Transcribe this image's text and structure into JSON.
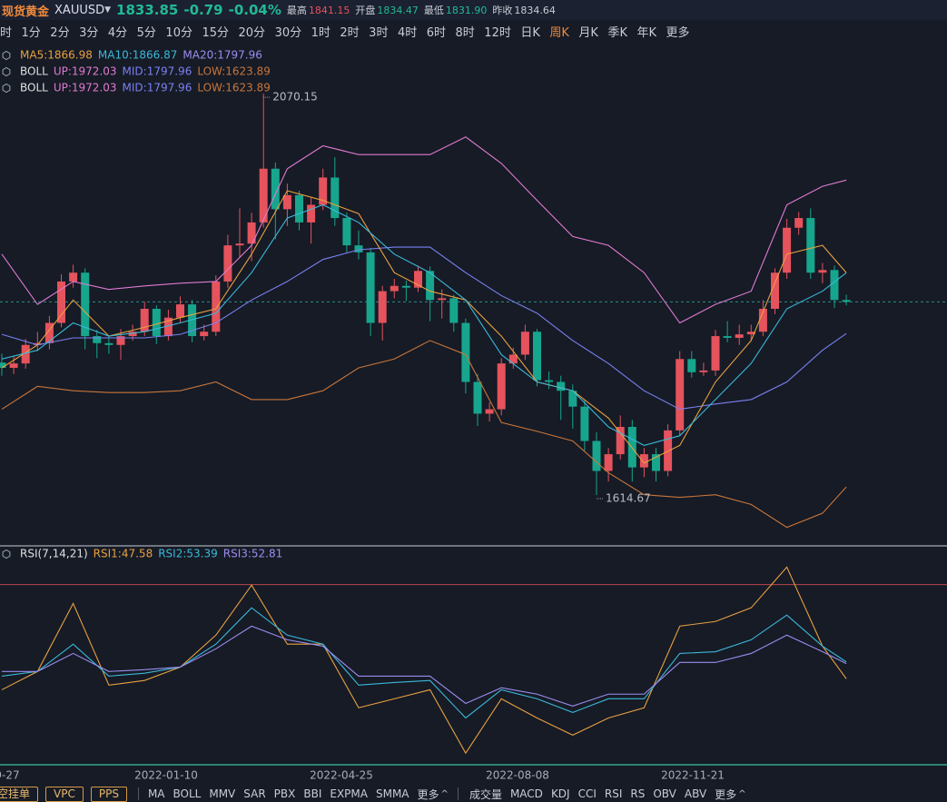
{
  "header": {
    "name": "现货黄金",
    "symbol": "XAUUSD",
    "price": "1833.85",
    "change": "-0.79",
    "change_pct": "-0.04%",
    "high_label": "最高",
    "high": "1841.15",
    "open_label": "开盘",
    "open": "1834.47",
    "low_label": "最低",
    "low": "1831.90",
    "prev_label": "昨收",
    "prev": "1834.64"
  },
  "periods": {
    "items": [
      "时",
      "1分",
      "2分",
      "3分",
      "4分",
      "5分",
      "10分",
      "15分",
      "20分",
      "30分",
      "1时",
      "2时",
      "3时",
      "4时",
      "6时",
      "8时",
      "12时",
      "日K",
      "周K",
      "月K",
      "季K",
      "年K",
      "更多"
    ],
    "active": "周K"
  },
  "legend": [
    [
      "MA5:1866.98",
      "MA10:1866.87",
      "MA20:1797.96"
    ],
    [
      "BOLL",
      "UP:1972.03",
      "MID:1797.96",
      "LOW:1623.89"
    ],
    [
      "BOLL",
      "UP:1972.03",
      "MID:1797.96",
      "LOW:1623.89"
    ]
  ],
  "chart_data": {
    "type": "candlestick",
    "up_color": "#e5535d",
    "down_color": "#17a68d",
    "ylim": [
      1558,
      2128
    ],
    "candles": [
      [
        1765,
        1775,
        1750,
        1759
      ],
      [
        1759,
        1772,
        1752,
        1764
      ],
      [
        1764,
        1792,
        1758,
        1785
      ],
      [
        1785,
        1800,
        1778,
        1787
      ],
      [
        1787,
        1818,
        1780,
        1810
      ],
      [
        1810,
        1865,
        1805,
        1857
      ],
      [
        1857,
        1876,
        1850,
        1867
      ],
      [
        1867,
        1872,
        1780,
        1795
      ],
      [
        1795,
        1802,
        1770,
        1787
      ],
      [
        1787,
        1795,
        1775,
        1785
      ],
      [
        1785,
        1803,
        1768,
        1795
      ],
      [
        1795,
        1808,
        1790,
        1800
      ],
      [
        1800,
        1834,
        1795,
        1826
      ],
      [
        1826,
        1830,
        1786,
        1795
      ],
      [
        1795,
        1825,
        1790,
        1816
      ],
      [
        1816,
        1840,
        1810,
        1831
      ],
      [
        1831,
        1836,
        1788,
        1795
      ],
      [
        1795,
        1808,
        1790,
        1800
      ],
      [
        1800,
        1864,
        1795,
        1857
      ],
      [
        1857,
        1910,
        1850,
        1898
      ],
      [
        1898,
        1940,
        1885,
        1900
      ],
      [
        1900,
        1935,
        1880,
        1924
      ],
      [
        1924,
        2070.15,
        1918,
        1985
      ],
      [
        1985,
        1992,
        1905,
        1939
      ],
      [
        1939,
        1968,
        1920,
        1955
      ],
      [
        1955,
        1960,
        1915,
        1924
      ],
      [
        1924,
        1952,
        1900,
        1944
      ],
      [
        1944,
        1985,
        1938,
        1975
      ],
      [
        1975,
        1998,
        1920,
        1929
      ],
      [
        1929,
        1935,
        1890,
        1898
      ],
      [
        1898,
        1915,
        1882,
        1890
      ],
      [
        1890,
        1895,
        1795,
        1810
      ],
      [
        1810,
        1852,
        1790,
        1846
      ],
      [
        1846,
        1860,
        1838,
        1852
      ],
      [
        1852,
        1858,
        1835,
        1850
      ],
      [
        1850,
        1875,
        1845,
        1869
      ],
      [
        1869,
        1874,
        1812,
        1836
      ],
      [
        1836,
        1848,
        1815,
        1838
      ],
      [
        1838,
        1842,
        1800,
        1810
      ],
      [
        1810,
        1815,
        1730,
        1743
      ],
      [
        1743,
        1752,
        1693,
        1707
      ],
      [
        1707,
        1720,
        1698,
        1712
      ],
      [
        1712,
        1770,
        1705,
        1764
      ],
      [
        1764,
        1782,
        1758,
        1774
      ],
      [
        1774,
        1808,
        1768,
        1800
      ],
      [
        1800,
        1803,
        1738,
        1745
      ],
      [
        1745,
        1755,
        1735,
        1743
      ],
      [
        1743,
        1750,
        1700,
        1733
      ],
      [
        1733,
        1740,
        1690,
        1715
      ],
      [
        1715,
        1722,
        1665,
        1676
      ],
      [
        1676,
        1686,
        1614.67,
        1642
      ],
      [
        1642,
        1668,
        1630,
        1661
      ],
      [
        1661,
        1705,
        1655,
        1692
      ],
      [
        1692,
        1700,
        1630,
        1646
      ],
      [
        1646,
        1668,
        1635,
        1661
      ],
      [
        1661,
        1668,
        1630,
        1642
      ],
      [
        1642,
        1695,
        1636,
        1688
      ],
      [
        1688,
        1778,
        1682,
        1769
      ],
      [
        1769,
        1778,
        1748,
        1754
      ],
      [
        1754,
        1765,
        1750,
        1756
      ],
      [
        1756,
        1802,
        1750,
        1795
      ],
      [
        1795,
        1812,
        1788,
        1793
      ],
      [
        1793,
        1808,
        1785,
        1797
      ],
      [
        1797,
        1808,
        1790,
        1800
      ],
      [
        1800,
        1836,
        1795,
        1826
      ],
      [
        1826,
        1872,
        1820,
        1867
      ],
      [
        1867,
        1928,
        1860,
        1918
      ],
      [
        1918,
        1936,
        1910,
        1929
      ],
      [
        1929,
        1940,
        1860,
        1867
      ],
      [
        1867,
        1878,
        1855,
        1870
      ],
      [
        1870,
        1875,
        1827,
        1836
      ],
      [
        1836,
        1842,
        1830,
        1833.85
      ]
    ],
    "x": [
      0,
      3,
      6,
      9,
      12,
      15,
      18,
      21,
      24,
      27,
      30,
      33,
      36,
      39,
      42,
      45,
      48,
      51,
      54,
      57,
      60,
      63,
      66,
      69,
      71
    ],
    "series": [
      {
        "name": "BOLL UP",
        "color": "#e07ad0",
        "values": [
          1888,
          1831,
          1857,
          1848,
          1852,
          1855,
          1857,
          1898,
          1985,
          2011,
          2001,
          2001,
          2001,
          2021,
          1991,
          1949,
          1908,
          1898,
          1867,
          1810,
          1831,
          1846,
          1944,
          1965,
          1972.03
        ]
      },
      {
        "name": "BOLL MID",
        "color": "#7a80f0",
        "values": [
          1797,
          1785,
          1793,
          1793,
          1793,
          1797,
          1810,
          1836,
          1857,
          1882,
          1893,
          1896,
          1896,
          1867,
          1841,
          1821,
          1790,
          1764,
          1733,
          1712,
          1718,
          1723,
          1743,
          1779,
          1797.96
        ]
      },
      {
        "name": "BOLL LOW",
        "color": "#c8753a",
        "values": [
          1712,
          1738,
          1733,
          1731,
          1731,
          1733,
          1743,
          1723,
          1723,
          1733,
          1759,
          1769,
          1790,
          1774,
          1697,
          1687,
          1676,
          1640,
          1615,
          1612,
          1615,
          1604,
          1578,
          1594,
          1623.89
        ]
      },
      {
        "name": "MA5",
        "color": "#e8a040",
        "values": [
          1759,
          1785,
          1836,
          1795,
          1805,
          1816,
          1826,
          1888,
          1960,
          1949,
          1934,
          1867,
          1846,
          1836,
          1795,
          1743,
          1733,
          1702,
          1651,
          1671,
          1743,
          1790,
          1888,
          1898,
          1866.98
        ]
      },
      {
        "name": "MA10",
        "color": "#3bb8d8",
        "values": [
          1769,
          1779,
          1810,
          1795,
          1800,
          1810,
          1821,
          1867,
          1929,
          1944,
          1924,
          1888,
          1867,
          1836,
          1774,
          1743,
          1733,
          1692,
          1671,
          1682,
          1723,
          1764,
          1826,
          1846,
          1866.87
        ]
      }
    ]
  },
  "rsi": {
    "type": "line",
    "legend": [
      "RSI(7,14,21)",
      "RSI1:47.58",
      "RSI2:53.39",
      "RSI3:52.81"
    ],
    "ylim": [
      18,
      93
    ],
    "levels": [
      80
    ],
    "level_color": "#b8474a",
    "x": [
      0,
      3,
      6,
      9,
      12,
      15,
      18,
      21,
      24,
      27,
      30,
      33,
      36,
      39,
      42,
      45,
      48,
      51,
      54,
      57,
      60,
      63,
      66,
      69,
      71
    ],
    "series": [
      {
        "name": "RSI1",
        "color": "#e8a040",
        "values": [
          43.8,
          50.1,
          73.5,
          45.4,
          47.0,
          51.6,
          62.6,
          79.8,
          59.5,
          59.5,
          37.6,
          40.7,
          43.8,
          22.0,
          40.7,
          34.1,
          28.2,
          34.1,
          37.6,
          65.7,
          67.3,
          72.0,
          86.0,
          58.8,
          47.58
        ]
      },
      {
        "name": "RSI2",
        "color": "#3bb8d8",
        "values": [
          48.5,
          50.1,
          59.5,
          48.5,
          49.5,
          51.6,
          59.5,
          72.0,
          62.6,
          59.5,
          45.4,
          46.3,
          47.0,
          34.1,
          43.8,
          40.7,
          36.0,
          40.7,
          40.7,
          56.3,
          56.9,
          61.0,
          69.5,
          58.8,
          53.39
        ]
      },
      {
        "name": "RSI3",
        "color": "#9d8cf0",
        "values": [
          50.1,
          50.1,
          56.3,
          50.1,
          50.7,
          51.6,
          57.9,
          65.7,
          61.0,
          58.8,
          48.5,
          48.5,
          48.5,
          39.1,
          44.5,
          42.3,
          38.2,
          42.3,
          42.3,
          53.2,
          53.2,
          56.3,
          62.6,
          56.9,
          52.81
        ]
      }
    ]
  },
  "dates": [
    "9-27",
    "2022-01-10",
    "2022-04-25",
    "2022-08-08",
    "2022-11-21"
  ],
  "toolbar": {
    "buttons": [
      "空挂单",
      "VPC",
      "PPS"
    ],
    "main": [
      "MA",
      "BOLL",
      "MMV",
      "SAR",
      "PBX",
      "BBI",
      "EXPMA",
      "SMMA",
      "更多"
    ],
    "sub": [
      "成交量",
      "MACD",
      "KDJ",
      "CCI",
      "RSI",
      "RS",
      "OBV",
      "ABV",
      "更多"
    ]
  }
}
